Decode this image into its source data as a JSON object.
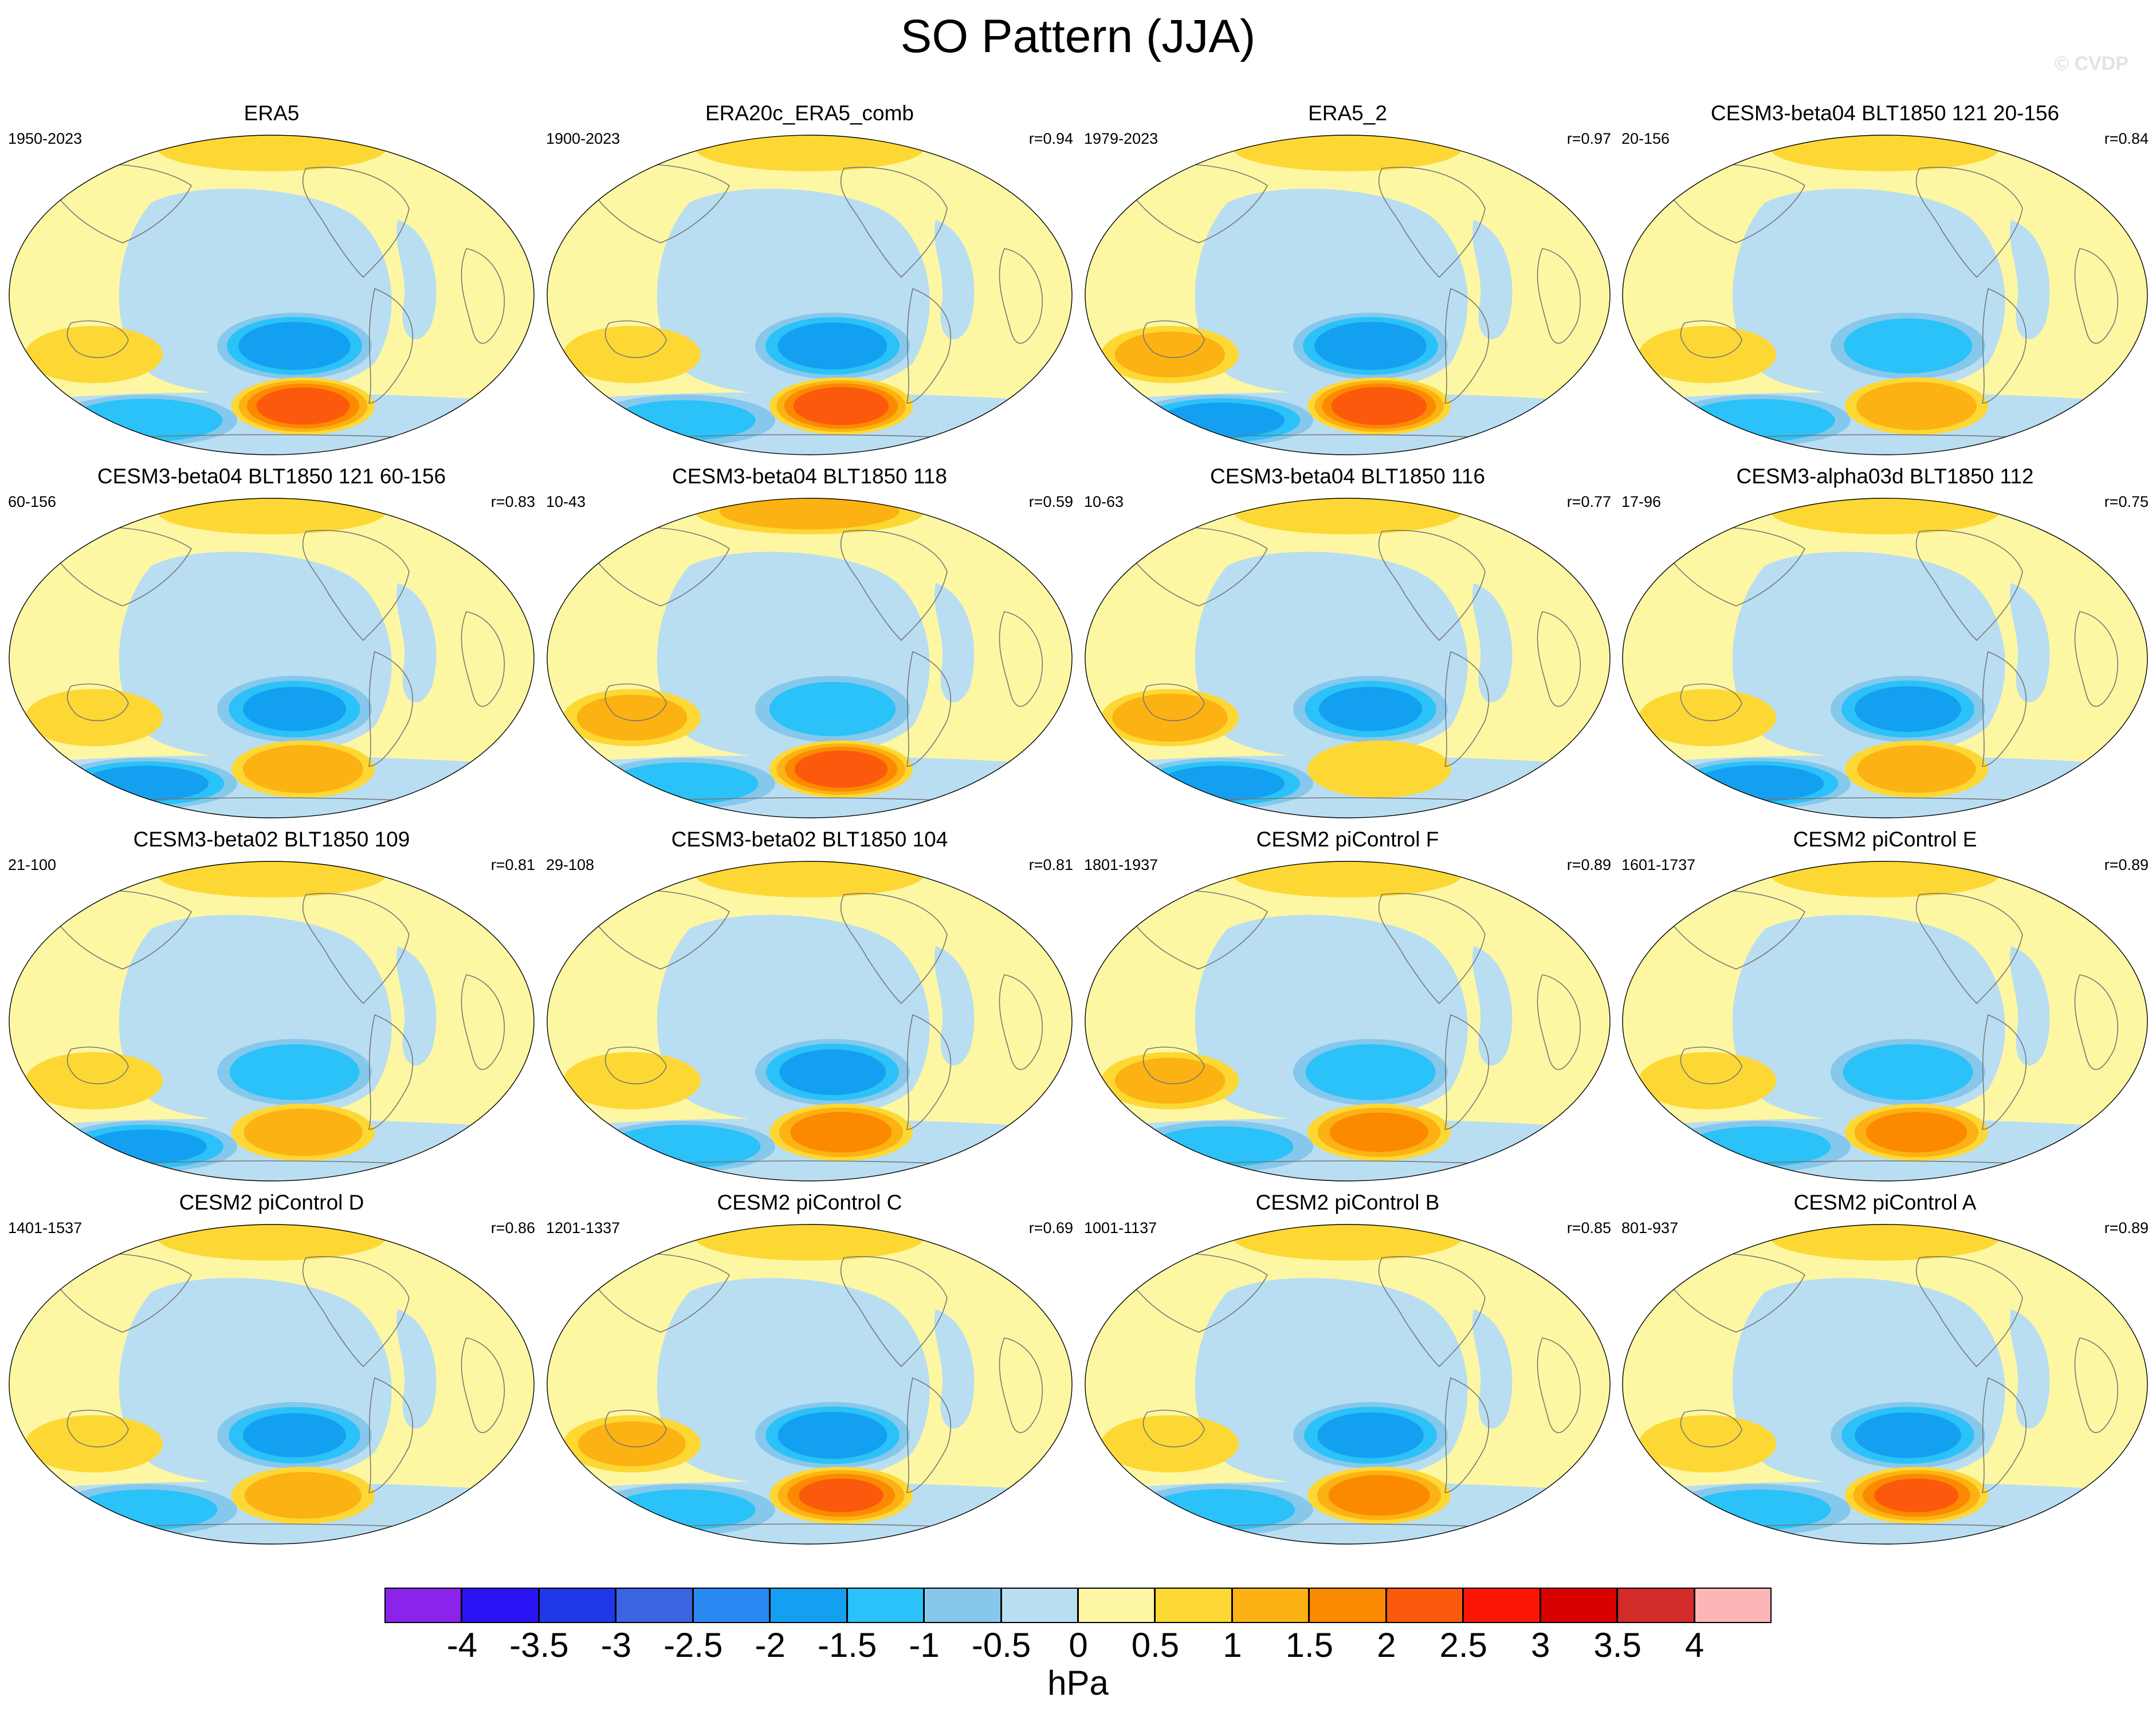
{
  "title": "SO Pattern (JJA)",
  "watermark": "© CVDP",
  "colors": {
    "ocean_base": "#b9def2",
    "land_base": "#fdf7a3",
    "coast": "#777777"
  },
  "panels": [
    {
      "name": "ERA5",
      "years": "1950-2023",
      "corr": "",
      "neg": 1.8,
      "pos": 2.3,
      "south": 1.4,
      "indian": 0.9,
      "arctic": 0.7
    },
    {
      "name": "ERA20c_ERA5_comb",
      "years": "1900-2023",
      "corr": "r=0.94",
      "neg": 1.7,
      "pos": 2.4,
      "south": 1.0,
      "indian": 0.9,
      "arctic": 0.6
    },
    {
      "name": "ERA5_2",
      "years": "1979-2023",
      "corr": "r=0.97",
      "neg": 1.8,
      "pos": 2.4,
      "south": 1.6,
      "indian": 1.1,
      "arctic": 0.9
    },
    {
      "name": "CESM3-beta04 BLT1850 121 20-156",
      "years": "20-156",
      "corr": "r=0.84",
      "neg": 1.3,
      "pos": 1.4,
      "south": 1.3,
      "indian": 0.9,
      "arctic": 0.6
    },
    {
      "name": "CESM3-beta04 BLT1850 121 60-156",
      "years": "60-156",
      "corr": "r=0.83",
      "neg": 1.5,
      "pos": 1.4,
      "south": 1.6,
      "indian": 0.8,
      "arctic": 0.6
    },
    {
      "name": "CESM3-beta04 BLT1850 118",
      "years": "10-43",
      "corr": "r=0.59",
      "neg": 1.2,
      "pos": 2.3,
      "south": 1.2,
      "indian": 1.1,
      "arctic": 1.0
    },
    {
      "name": "CESM3-beta04 BLT1850 116",
      "years": "10-63",
      "corr": "r=0.77",
      "neg": 1.5,
      "pos": 0.7,
      "south": 1.6,
      "indian": 1.4,
      "arctic": 0.8
    },
    {
      "name": "CESM3-alpha03d BLT1850 112",
      "years": "17-96",
      "corr": "r=0.75",
      "neg": 1.6,
      "pos": 1.3,
      "south": 1.7,
      "indian": 0.9,
      "arctic": 0.9
    },
    {
      "name": "CESM3-beta02 BLT1850 109",
      "years": "21-100",
      "corr": "r=0.81",
      "neg": 1.4,
      "pos": 1.3,
      "south": 1.5,
      "indian": 0.8,
      "arctic": 0.6
    },
    {
      "name": "CESM3-beta02 BLT1850 104",
      "years": "29-108",
      "corr": "r=0.81",
      "neg": 1.6,
      "pos": 1.7,
      "south": 1.4,
      "indian": 0.9,
      "arctic": 0.8
    },
    {
      "name": "CESM2 piControl F",
      "years": "1801-1937",
      "corr": "r=0.89",
      "neg": 1.4,
      "pos": 1.6,
      "south": 1.0,
      "indian": 1.1,
      "arctic": 0.5
    },
    {
      "name": "CESM2 piControl E",
      "years": "1601-1737",
      "corr": "r=0.89",
      "neg": 1.4,
      "pos": 1.7,
      "south": 1.0,
      "indian": 0.9,
      "arctic": 0.6
    },
    {
      "name": "CESM2 piControl D",
      "years": "1401-1537",
      "corr": "r=0.86",
      "neg": 1.5,
      "pos": 1.2,
      "south": 1.0,
      "indian": 0.8,
      "arctic": 0.5
    },
    {
      "name": "CESM2 piControl C",
      "years": "1201-1337",
      "corr": "r=0.69",
      "neg": 1.7,
      "pos": 2.0,
      "south": 1.0,
      "indian": 1.0,
      "arctic": 0.9
    },
    {
      "name": "CESM2 piControl B",
      "years": "1001-1137",
      "corr": "r=0.85",
      "neg": 1.6,
      "pos": 1.7,
      "south": 1.1,
      "indian": 0.9,
      "arctic": 0.7
    },
    {
      "name": "CESM2 piControl A",
      "years": "801-937",
      "corr": "r=0.89",
      "neg": 1.6,
      "pos": 2.0,
      "south": 1.0,
      "indian": 0.8,
      "arctic": 0.7
    }
  ],
  "colorbar": {
    "units": "hPa",
    "labels": [
      "-4",
      "-3.5",
      "-3",
      "-2.5",
      "-2",
      "-1.5",
      "-1",
      "-0.5",
      "0",
      "0.5",
      "1",
      "1.5",
      "2",
      "2.5",
      "3",
      "3.5",
      "4"
    ],
    "colors": [
      "#8b23ea",
      "#2a14f5",
      "#2038ea",
      "#3a64e0",
      "#2a88f2",
      "#14a0f0",
      "#2ac2f8",
      "#86c8ec",
      "#b9def2",
      "#fdf7a3",
      "#fdd835",
      "#fbb212",
      "#fb8a00",
      "#fb5a0c",
      "#fc1405",
      "#d90000",
      "#d32a2a",
      "#fcb6b6"
    ]
  }
}
